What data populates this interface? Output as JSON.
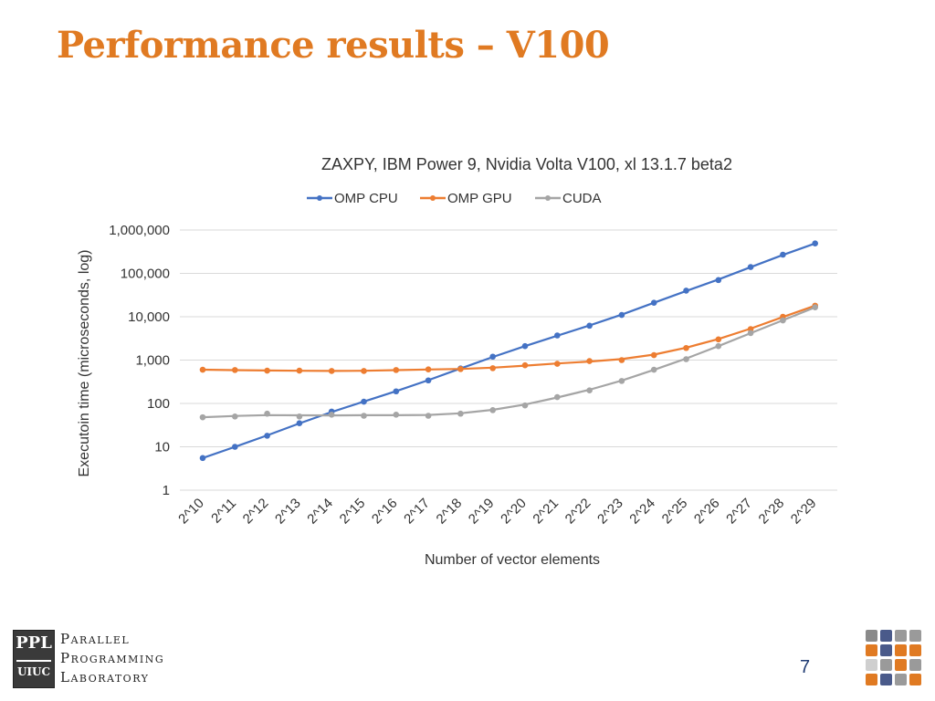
{
  "slide": {
    "title": "Performance results – V100",
    "page_number": "7",
    "logo": {
      "box_top": "PPL",
      "box_bottom": "UIUC",
      "lines": [
        "Parallel",
        "Programming",
        "Laboratory"
      ]
    }
  },
  "chart_data": {
    "type": "line",
    "title": "ZAXPY, IBM Power 9, Nvidia Volta V100, xl 13.1.7 beta2",
    "xlabel": "Number of vector elements",
    "ylabel": "Executoin time (microseconds, log)",
    "yscale": "log",
    "ylim": [
      1,
      1000000
    ],
    "yticks": [
      "1",
      "10",
      "100",
      "1,000",
      "10,000",
      "100,000",
      "1,000,000"
    ],
    "grid": true,
    "legend_position": "top",
    "categories": [
      "2^10",
      "2^11",
      "2^12",
      "2^13",
      "2^14",
      "2^15",
      "2^16",
      "2^17",
      "2^18",
      "2^19",
      "2^20",
      "2^21",
      "2^22",
      "2^23",
      "2^24",
      "2^25",
      "2^26",
      "2^27",
      "2^28",
      "2^29"
    ],
    "series": [
      {
        "name": "OMP CPU",
        "color": "#4472c4",
        "values": [
          5.5,
          10,
          18,
          35,
          65,
          110,
          190,
          340,
          640,
          1200,
          2100,
          3700,
          6200,
          11000,
          21000,
          40000,
          70000,
          140000,
          270000,
          490000
        ]
      },
      {
        "name": "OMP GPU",
        "color": "#ed7d31",
        "values": [
          600,
          590,
          570,
          570,
          560,
          560,
          590,
          610,
          620,
          650,
          760,
          820,
          950,
          1000,
          1300,
          1900,
          3000,
          5200,
          10000,
          18000
        ]
      },
      {
        "name": "CUDA",
        "color": "#a5a5a5",
        "values": [
          48,
          50,
          58,
          50,
          55,
          52,
          55,
          52,
          58,
          70,
          90,
          140,
          200,
          330,
          600,
          1050,
          2100,
          4200,
          8200,
          16500
        ]
      }
    ]
  }
}
